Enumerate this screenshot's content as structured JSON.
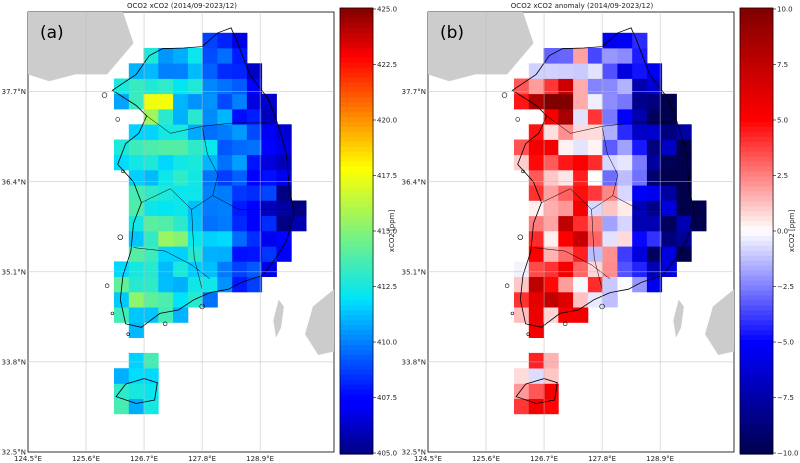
{
  "panels": [
    {
      "id": "a",
      "panel_label": "(a)",
      "title": "OCO2 xCO2 (2014/09-2023/12)",
      "colorbar": {
        "label": "xCO2 [ppm]",
        "ticks": [
          "425.0",
          "422.5",
          "420.0",
          "417.5",
          "415.0",
          "412.5",
          "410.0",
          "407.5",
          "405.0"
        ],
        "colormap": "jet",
        "range": [
          405,
          425
        ]
      }
    },
    {
      "id": "b",
      "panel_label": "(b)",
      "title": "OCO2 xCO2 anomaly (2014/09-2023/12)",
      "colorbar": {
        "label": "xCO2 [ppm]",
        "ticks": [
          "10.0",
          "7.5",
          "5.0",
          "2.5",
          "0.0",
          "−2.5",
          "−5.0",
          "−7.5",
          "−10.0"
        ],
        "colormap": "seismic",
        "range": [
          -10,
          10
        ]
      }
    }
  ],
  "x_ticks": [
    "124.5°E",
    "125.6°E",
    "126.7°E",
    "127.8°E",
    "128.9°E"
  ],
  "y_ticks": [
    "37.7°N",
    "36.4°N",
    "35.1°N",
    "33.8°N",
    "32.5°N"
  ],
  "colors": {
    "land_neighbors": "#cccccc",
    "coastline": "#000000",
    "gridline": "#bdbdbd"
  }
}
